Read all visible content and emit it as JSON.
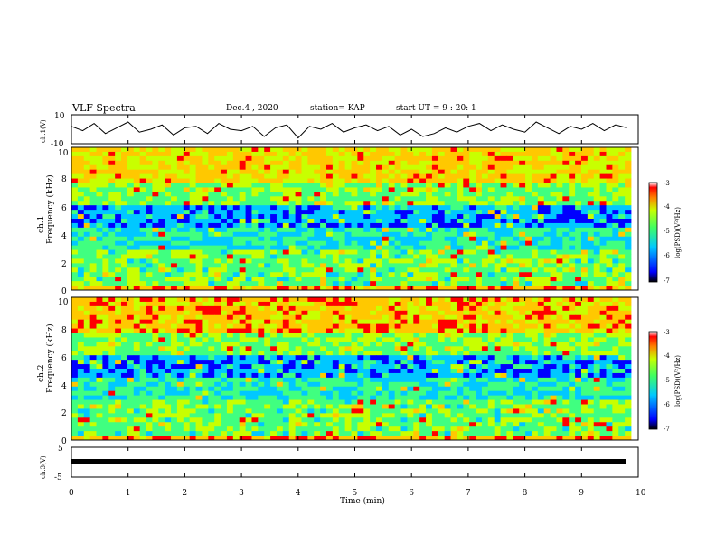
{
  "header": {
    "title": "VLF Spectra",
    "date": "Dec.4 , 2020",
    "station": "station= KAP",
    "start_ut": "start UT =  9 : 20: 1"
  },
  "chart_data": [
    {
      "type": "line",
      "panel": "ch1-waveform",
      "ylabel": "ch.1(V)",
      "ylim": [
        -10,
        10
      ],
      "yticks": [
        "10",
        "-10"
      ],
      "x": [
        0.0,
        0.2,
        0.4,
        0.6,
        0.8,
        1.0,
        1.2,
        1.4,
        1.6,
        1.8,
        2.0,
        2.2,
        2.4,
        2.6,
        2.8,
        3.0,
        3.2,
        3.4,
        3.6,
        3.8,
        4.0,
        4.2,
        4.4,
        4.6,
        4.8,
        5.0,
        5.2,
        5.4,
        5.6,
        5.8,
        6.0,
        6.2,
        6.4,
        6.6,
        6.8,
        7.0,
        7.2,
        7.4,
        7.6,
        7.8,
        8.0,
        8.2,
        8.4,
        8.6,
        8.8,
        9.0,
        9.2,
        9.4,
        9.6,
        9.8
      ],
      "values": [
        2,
        -1,
        4,
        -3,
        1,
        5,
        -2,
        0,
        3,
        -4,
        1,
        2,
        -3,
        4,
        0,
        -1,
        2,
        -5,
        1,
        3,
        -6,
        2,
        0,
        4,
        -2,
        1,
        3,
        -1,
        2,
        -4,
        0,
        -5,
        -3,
        1,
        -2,
        2,
        4,
        -1,
        3,
        0,
        -2,
        5,
        1,
        -3,
        2,
        0,
        4,
        -1,
        3,
        1
      ]
    },
    {
      "type": "heatmap",
      "panel": "ch1-spectrogram",
      "ylabel": "ch.1\nFrequency (kHz)",
      "ylim": [
        0,
        10
      ],
      "yticks": [
        "0",
        "2",
        "4",
        "6",
        "8",
        "10"
      ],
      "colorbar": {
        "label": "log(PSD)(V²/Hz)",
        "range": [
          -7,
          -3
        ],
        "ticks": [
          "-3",
          "-4",
          "-5",
          "-6",
          "-7"
        ]
      }
    },
    {
      "type": "heatmap",
      "panel": "ch2-spectrogram",
      "ylabel": "ch.2\nFrequency (kHz)",
      "ylim": [
        0,
        10
      ],
      "yticks": [
        "0",
        "2",
        "4",
        "6",
        "8",
        "10"
      ],
      "colorbar": {
        "label": "log(PSD)(V²/Hz)",
        "range": [
          -7,
          -3
        ],
        "ticks": [
          "-3",
          "-4",
          "-5",
          "-6",
          "-7"
        ]
      }
    },
    {
      "type": "line",
      "panel": "ch3-waveform",
      "ylabel": "ch.3(V)",
      "ylim": [
        -5,
        5
      ],
      "yticks": [
        "5",
        "-5"
      ],
      "x": [
        0,
        9.85
      ],
      "values": [
        0,
        0
      ]
    }
  ],
  "xaxis": {
    "label": "Time (min)",
    "range": [
      0,
      10
    ],
    "ticks": [
      "0",
      "1",
      "2",
      "3",
      "4",
      "5",
      "6",
      "7",
      "8",
      "9",
      "10"
    ]
  },
  "colors": {
    "colormap": [
      "#000080",
      "#0000ff",
      "#00c8ff",
      "#40ff80",
      "#c8ff00",
      "#ffc800",
      "#ff0000",
      "#ffffff"
    ]
  }
}
